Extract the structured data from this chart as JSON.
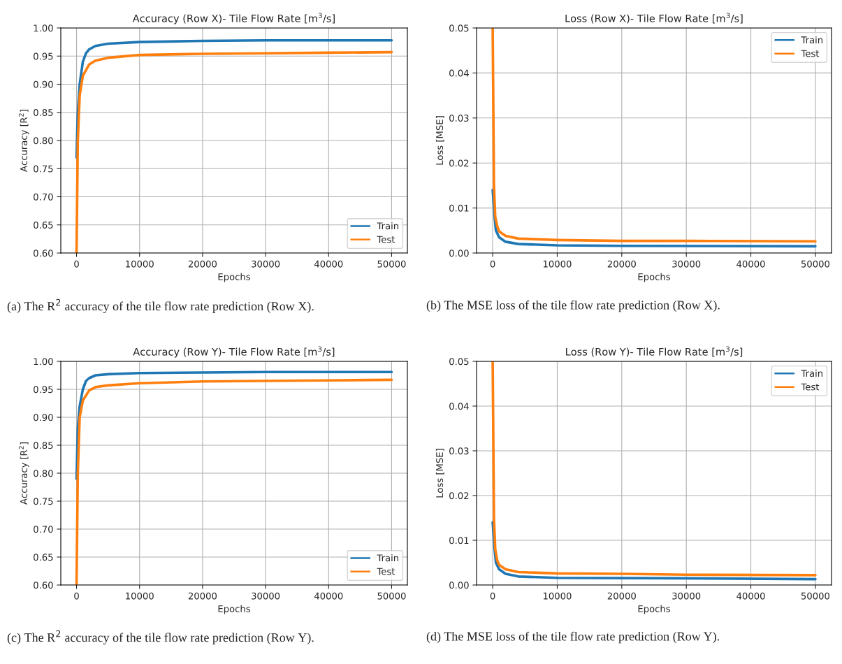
{
  "chart_data": [
    {
      "type": "line",
      "title": "Accuracy (Row X)- Tile Flow Rate [m$^{3}$/s]",
      "xlabel": "Epochs",
      "ylabel": "Accuracy [R$^{2}$]",
      "series": [
        {
          "name": "Train",
          "color": "#1f77b4",
          "x": [
            0,
            200,
            500,
            1000,
            1500,
            2000,
            3000,
            5000,
            10000,
            20000,
            30000,
            40000,
            50000
          ],
          "values": [
            0.77,
            0.85,
            0.9,
            0.94,
            0.955,
            0.962,
            0.968,
            0.972,
            0.975,
            0.977,
            0.978,
            0.978,
            0.978
          ]
        },
        {
          "name": "Test",
          "color": "#ff7f0e",
          "x": [
            0,
            200,
            500,
            1000,
            2000,
            3000,
            5000,
            10000,
            20000,
            30000,
            40000,
            50000
          ],
          "values": [
            0.6,
            0.8,
            0.88,
            0.915,
            0.935,
            0.942,
            0.947,
            0.952,
            0.954,
            0.955,
            0.956,
            0.957
          ]
        }
      ],
      "xlim": [
        -2500,
        52500
      ],
      "xticks": [
        0,
        10000,
        20000,
        30000,
        40000,
        50000
      ],
      "ylim": [
        0.6,
        1.0
      ],
      "yticks": [
        {
          "value": 0.6,
          "label": "0.60"
        },
        {
          "value": 0.65,
          "label": "0.65"
        },
        {
          "value": 0.7,
          "label": "0.70"
        },
        {
          "value": 0.75,
          "label": "0.75"
        },
        {
          "value": 0.8,
          "label": "0.80"
        },
        {
          "value": 0.85,
          "label": "0.85"
        },
        {
          "value": 0.9,
          "label": "0.90"
        },
        {
          "value": 0.95,
          "label": "0.95"
        },
        {
          "value": 1.0,
          "label": "1.00"
        }
      ],
      "grid": true,
      "legend": "bottom right",
      "annotations": [
        "(a) The R$^{2}$ accuracy of the tile flow rate prediction (Row X)."
      ]
    },
    {
      "type": "line",
      "title": "Loss (Row X)- Tile Flow Rate [m$^{3}$/s]",
      "xlabel": "Epochs",
      "ylabel": "Loss [MSE]",
      "series": [
        {
          "name": "Train",
          "color": "#1f77b4",
          "x": [
            0,
            300,
            500,
            1000,
            2000,
            4000,
            10000,
            20000,
            50000
          ],
          "values": [
            0.014,
            0.008,
            0.005,
            0.0035,
            0.0025,
            0.002,
            0.0017,
            0.0016,
            0.0015
          ]
        },
        {
          "name": "Test",
          "color": "#ff7f0e",
          "x": [
            0,
            200,
            400,
            700,
            1000,
            2000,
            4000,
            10000,
            20000,
            30000,
            50000
          ],
          "values": [
            0.05,
            0.015,
            0.008,
            0.006,
            0.0048,
            0.0038,
            0.0032,
            0.0029,
            0.0027,
            0.0027,
            0.0026
          ]
        }
      ],
      "xlim": [
        -2500,
        52500
      ],
      "xticks": [
        0,
        10000,
        20000,
        30000,
        40000,
        50000
      ],
      "ylim": [
        0,
        0.05
      ],
      "yticks": [
        {
          "value": 0,
          "label": "0.00"
        },
        {
          "value": 0.01,
          "label": "0.01"
        },
        {
          "value": 0.02,
          "label": "0.02"
        },
        {
          "value": 0.03,
          "label": "0.03"
        },
        {
          "value": 0.04,
          "label": "0.04"
        },
        {
          "value": 0.05,
          "label": "0.05"
        }
      ],
      "grid": true,
      "legend": "top right",
      "annotations": [
        "(b) The MSE loss of the tile flow rate prediction (Row X)."
      ]
    },
    {
      "type": "line",
      "title": "Accuracy (Row Y)- Tile Flow Rate [m$^{3}$/s]",
      "xlabel": "Epochs",
      "ylabel": "Accuracy [R$^{2}$]",
      "series": [
        {
          "name": "Train",
          "color": "#1f77b4",
          "x": [
            0,
            200,
            500,
            1000,
            1500,
            2000,
            3000,
            5000,
            10000,
            20000,
            30000,
            50000
          ],
          "values": [
            0.79,
            0.88,
            0.92,
            0.95,
            0.965,
            0.97,
            0.975,
            0.977,
            0.979,
            0.98,
            0.981,
            0.981
          ]
        },
        {
          "name": "Test",
          "color": "#ff7f0e",
          "x": [
            0,
            200,
            500,
            1000,
            2000,
            3000,
            5000,
            10000,
            20000,
            30000,
            40000,
            50000
          ],
          "values": [
            0.6,
            0.8,
            0.9,
            0.93,
            0.948,
            0.954,
            0.957,
            0.961,
            0.964,
            0.965,
            0.966,
            0.967
          ]
        }
      ],
      "xlim": [
        -2500,
        52500
      ],
      "xticks": [
        0,
        10000,
        20000,
        30000,
        40000,
        50000
      ],
      "ylim": [
        0.6,
        1.0
      ],
      "yticks": [
        {
          "value": 0.6,
          "label": "0.60"
        },
        {
          "value": 0.65,
          "label": "0.65"
        },
        {
          "value": 0.7,
          "label": "0.70"
        },
        {
          "value": 0.75,
          "label": "0.75"
        },
        {
          "value": 0.8,
          "label": "0.80"
        },
        {
          "value": 0.85,
          "label": "0.85"
        },
        {
          "value": 0.9,
          "label": "0.90"
        },
        {
          "value": 0.95,
          "label": "0.95"
        },
        {
          "value": 1.0,
          "label": "1.00"
        }
      ],
      "grid": true,
      "legend": "bottom right",
      "annotations": [
        "(c) The R$^{2}$ accuracy of the tile flow rate prediction (Row Y)."
      ]
    },
    {
      "type": "line",
      "title": "Loss (Row Y)- Tile Flow Rate [m$^{3}$/s]",
      "xlabel": "Epochs",
      "ylabel": "Loss [MSE]",
      "series": [
        {
          "name": "Train",
          "color": "#1f77b4",
          "x": [
            0,
            300,
            500,
            1000,
            2000,
            4000,
            10000,
            30000,
            50000
          ],
          "values": [
            0.014,
            0.008,
            0.005,
            0.0035,
            0.0025,
            0.0019,
            0.0016,
            0.0015,
            0.0013
          ]
        },
        {
          "name": "Test",
          "color": "#ff7f0e",
          "x": [
            0,
            200,
            400,
            700,
            1000,
            2000,
            4000,
            10000,
            20000,
            30000,
            50000
          ],
          "values": [
            0.05,
            0.015,
            0.008,
            0.0055,
            0.0045,
            0.0035,
            0.0029,
            0.0026,
            0.0025,
            0.0023,
            0.0022
          ]
        }
      ],
      "xlim": [
        -2500,
        52500
      ],
      "xticks": [
        0,
        10000,
        20000,
        30000,
        40000,
        50000
      ],
      "ylim": [
        0,
        0.05
      ],
      "yticks": [
        {
          "value": 0,
          "label": "0.00"
        },
        {
          "value": 0.01,
          "label": "0.01"
        },
        {
          "value": 0.02,
          "label": "0.02"
        },
        {
          "value": 0.03,
          "label": "0.03"
        },
        {
          "value": 0.04,
          "label": "0.04"
        },
        {
          "value": 0.05,
          "label": "0.05"
        }
      ],
      "grid": true,
      "legend": "top right",
      "annotations": [
        "(d) The MSE loss of the tile flow rate prediction (Row Y)."
      ]
    }
  ]
}
